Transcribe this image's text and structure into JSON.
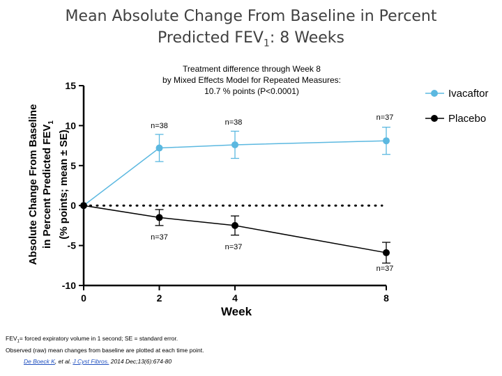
{
  "title": {
    "line1": "Mean Absolute Change From Baseline in Percent",
    "line2_prefix": "Predicted FEV",
    "line2_sub": "1",
    "line2_suffix": ": 8 Weeks"
  },
  "colors": {
    "ivacaftor": "#5bb8e0",
    "placebo": "#000000",
    "reference": "#000000"
  },
  "chart_data": {
    "type": "line",
    "xlabel": "Week",
    "ylabel_lines": [
      "Absolute Change From Baseline",
      "in Percent Predicted FEV",
      "(% points; mean ± SE)"
    ],
    "ylabel_sub": "1",
    "x": [
      0,
      2,
      4,
      8
    ],
    "xticks": [
      0,
      2,
      4,
      8
    ],
    "yticks": [
      15,
      10,
      5,
      0,
      -5,
      -10
    ],
    "xlim": [
      0,
      8
    ],
    "ylim": [
      -10,
      15
    ],
    "annotation": [
      "Treatment difference through Week 8",
      "by Mixed Effects Model for Repeated Measures:",
      "10.7 % points (P<0.0001)"
    ],
    "legend_position": "top-right",
    "reference_line": {
      "y": 0,
      "style": "dotted"
    },
    "series": [
      {
        "name": "Ivacaftor",
        "values": [
          0,
          7.2,
          7.6,
          8.1
        ],
        "se": [
          0,
          1.7,
          1.7,
          1.7
        ],
        "n_labels": [
          "",
          "n=38",
          "n=38",
          "n=37"
        ]
      },
      {
        "name": "Placebo",
        "values": [
          0,
          -1.5,
          -2.5,
          -5.9
        ],
        "se": [
          0,
          1.0,
          1.2,
          1.3
        ],
        "n_labels": [
          "",
          "n=37",
          "n=37",
          "n=37"
        ]
      }
    ]
  },
  "footnote": {
    "line1_prefix": "FEV",
    "line1_sub": "1",
    "line1_rest": "= forced expiratory volume in 1 second; SE = standard error.",
    "line2": "Observed (raw) mean changes from baseline  are plotted at each time point."
  },
  "citation": {
    "author": "De Boeck K",
    "middle": ", et al. ",
    "journal": "J Cyst Fibros.",
    "rest": " 2014 Dec;13(6):674-80"
  }
}
